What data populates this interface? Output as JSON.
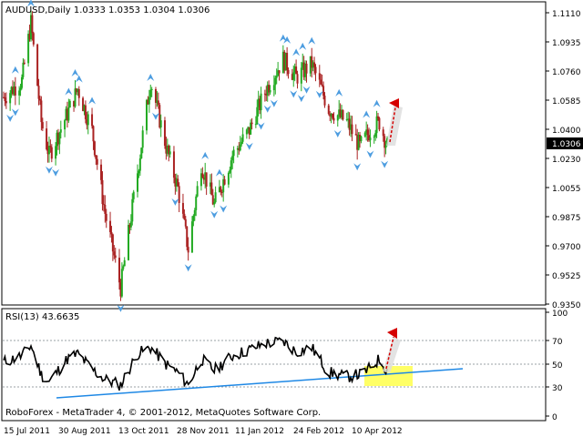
{
  "main_pane": {
    "header": "AUDUSD,Daily  1.0333 1.0353 1.0304 1.0306",
    "price_ticks": [
      "1.1110",
      "1.0935",
      "1.0760",
      "1.0585",
      "1.0400",
      "1.0230",
      "1.0055",
      "0.9875",
      "0.9700",
      "0.9525",
      "0.9350"
    ],
    "current_price_label": "1.0306"
  },
  "rsi_pane": {
    "header": "RSI(13) 43.6635",
    "ticks": [
      "100",
      "70",
      "50",
      "30",
      "0"
    ]
  },
  "footer": {
    "copyright": "RoboForex - MetaTrader 4, © 2001-2012, MetaQuotes Software Corp."
  },
  "time_axis": {
    "labels": [
      "15 Jul 2011",
      "30 Aug 2011",
      "13 Oct 2011",
      "28 Nov 2011",
      "11 Jan 2012",
      "24 Feb 2012",
      "10 Apr 2012"
    ]
  },
  "colors": {
    "bull_candle": "#22aa22",
    "bear_candle": "#aa2222",
    "fractal_arrow": "#4d9de0",
    "rsi_line": "#000000",
    "trendline": "#1e88e5",
    "forecast_arrow": "#d50000",
    "forecast_zone": "#ffff66"
  },
  "chart_data": [
    {
      "type": "candlestick",
      "symbol": "AUDUSD",
      "timeframe": "Daily",
      "last_bar": {
        "open": 1.0333,
        "high": 1.0353,
        "low": 1.0304,
        "close": 1.0306
      },
      "ylim": [
        0.933,
        1.117
      ],
      "approx_close_path": [
        {
          "date": "2011-07-06",
          "close": 1.06
        },
        {
          "date": "2011-07-20",
          "close": 1.07
        },
        {
          "date": "2011-07-27",
          "close": 1.105
        },
        {
          "date": "2011-08-04",
          "close": 1.045
        },
        {
          "date": "2011-08-10",
          "close": 1.025
        },
        {
          "date": "2011-08-24",
          "close": 1.05
        },
        {
          "date": "2011-09-01",
          "close": 1.065
        },
        {
          "date": "2011-09-12",
          "close": 1.04
        },
        {
          "date": "2011-09-22",
          "close": 0.99
        },
        {
          "date": "2011-10-04",
          "close": 0.945
        },
        {
          "date": "2011-10-17",
          "close": 1.015
        },
        {
          "date": "2011-10-27",
          "close": 1.07
        },
        {
          "date": "2011-11-08",
          "close": 1.03
        },
        {
          "date": "2011-11-17",
          "close": 1.005
        },
        {
          "date": "2011-11-25",
          "close": 0.968
        },
        {
          "date": "2011-12-05",
          "close": 1.02
        },
        {
          "date": "2011-12-15",
          "close": 0.995
        },
        {
          "date": "2011-12-29",
          "close": 1.025
        },
        {
          "date": "2012-01-11",
          "close": 1.04
        },
        {
          "date": "2012-01-24",
          "close": 1.065
        },
        {
          "date": "2012-02-06",
          "close": 1.083
        },
        {
          "date": "2012-02-16",
          "close": 1.072
        },
        {
          "date": "2012-02-28",
          "close": 1.08
        },
        {
          "date": "2012-03-12",
          "close": 1.053
        },
        {
          "date": "2012-03-26",
          "close": 1.045
        },
        {
          "date": "2012-04-05",
          "close": 1.03
        },
        {
          "date": "2012-04-13",
          "close": 1.04
        },
        {
          "date": "2012-04-20",
          "close": 1.045
        },
        {
          "date": "2012-04-26",
          "close": 1.0306
        }
      ]
    },
    {
      "type": "line",
      "name": "RSI(13)",
      "last_value": 43.6635,
      "ylim": [
        0,
        100
      ],
      "levels": [
        70,
        50,
        30
      ],
      "approx_values": [
        {
          "date": "2011-07-06",
          "value": 52
        },
        {
          "date": "2011-07-20",
          "value": 58
        },
        {
          "date": "2011-07-27",
          "value": 68
        },
        {
          "date": "2011-08-04",
          "value": 40
        },
        {
          "date": "2011-08-10",
          "value": 33
        },
        {
          "date": "2011-08-24",
          "value": 55
        },
        {
          "date": "2011-09-01",
          "value": 60
        },
        {
          "date": "2011-09-12",
          "value": 45
        },
        {
          "date": "2011-09-22",
          "value": 35
        },
        {
          "date": "2011-10-04",
          "value": 30
        },
        {
          "date": "2011-10-17",
          "value": 60
        },
        {
          "date": "2011-10-27",
          "value": 66
        },
        {
          "date": "2011-11-08",
          "value": 50
        },
        {
          "date": "2011-11-17",
          "value": 42
        },
        {
          "date": "2011-11-25",
          "value": 30
        },
        {
          "date": "2011-12-05",
          "value": 55
        },
        {
          "date": "2011-12-15",
          "value": 44
        },
        {
          "date": "2011-12-29",
          "value": 58
        },
        {
          "date": "2012-01-11",
          "value": 64
        },
        {
          "date": "2012-01-24",
          "value": 70
        },
        {
          "date": "2012-02-06",
          "value": 72
        },
        {
          "date": "2012-02-16",
          "value": 62
        },
        {
          "date": "2012-02-28",
          "value": 66
        },
        {
          "date": "2012-03-12",
          "value": 42
        },
        {
          "date": "2012-03-26",
          "value": 38
        },
        {
          "date": "2012-04-05",
          "value": 40
        },
        {
          "date": "2012-04-13",
          "value": 46
        },
        {
          "date": "2012-04-20",
          "value": 55
        },
        {
          "date": "2012-04-26",
          "value": 43.6635
        }
      ]
    }
  ]
}
